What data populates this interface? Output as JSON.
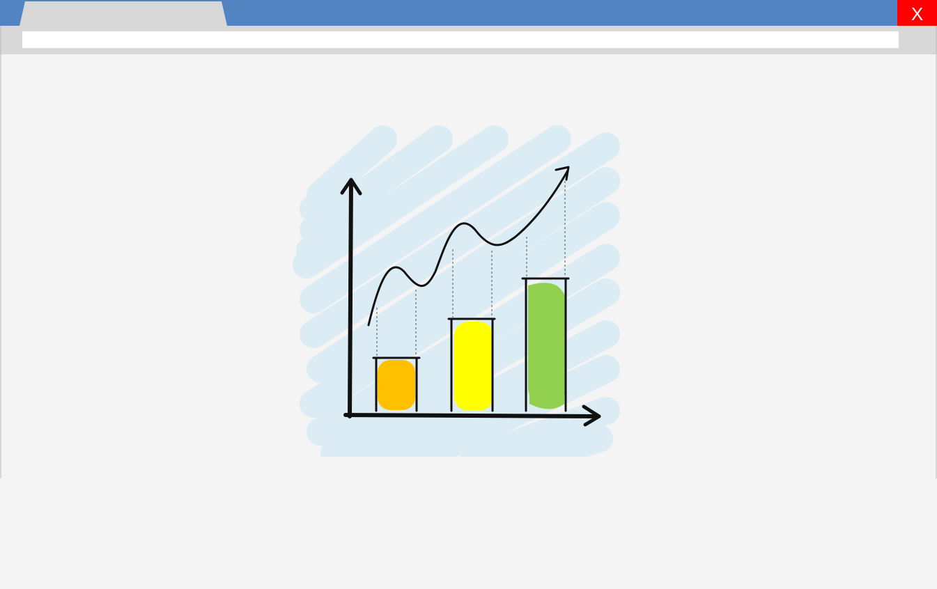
{
  "window": {
    "close_label": "X",
    "address_value": "",
    "colors": {
      "titlebar": "#5184c1",
      "close": "#ff0000",
      "tab": "#d8d8d8",
      "content": "#f4f4f4"
    }
  },
  "illustration": {
    "icon": "growth-chart-icon",
    "colors": {
      "scribble_bg": "#dcecf4",
      "bar1": "#ffc000",
      "bar2": "#ffff00",
      "bar3": "#92d050",
      "ink": "#111111"
    }
  }
}
